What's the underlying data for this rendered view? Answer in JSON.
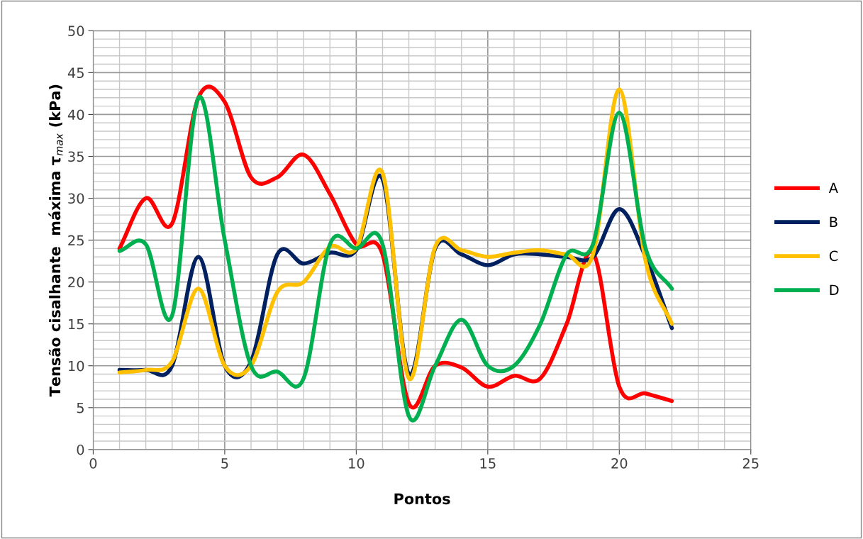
{
  "chart_data": {
    "type": "line",
    "xlabel": "Pontos",
    "ylabel": "Tensão cisalhante  máxima τ$_{max}$ (kPa)",
    "x": [
      1,
      2,
      3,
      4,
      5,
      6,
      7,
      8,
      9,
      10,
      11,
      12,
      13,
      14,
      15,
      16,
      17,
      18,
      19,
      20,
      21,
      22
    ],
    "series": [
      {
        "name": "A",
        "color": "#ff0000",
        "values": [
          24,
          30,
          27,
          42,
          41.5,
          32.5,
          32.5,
          35.2,
          30.5,
          24.5,
          23.3,
          5.5,
          10,
          9.8,
          7.5,
          8.8,
          8.5,
          15,
          23.5,
          7.5,
          6.7,
          5.8
        ]
      },
      {
        "name": "B",
        "color": "#002060",
        "values": [
          9.5,
          9.5,
          10,
          23,
          10,
          10.5,
          23.3,
          22.2,
          23.5,
          23.8,
          32.3,
          9,
          24,
          23.3,
          22,
          23.3,
          23.3,
          23,
          23,
          28.7,
          23,
          14.5
        ]
      },
      {
        "name": "C",
        "color": "#ffc000",
        "values": [
          9.2,
          9.5,
          10.5,
          19.2,
          10,
          10,
          18.8,
          20,
          24.2,
          24,
          33,
          8.5,
          24.2,
          23.8,
          23,
          23.5,
          23.8,
          23.3,
          23.3,
          43,
          22.5,
          15
        ]
      },
      {
        "name": "D",
        "color": "#00b050",
        "values": [
          23.7,
          24.5,
          16,
          42,
          25,
          10,
          9.3,
          8.5,
          24.5,
          24,
          24.5,
          4,
          10,
          15.5,
          10,
          10,
          15,
          23.3,
          24.5,
          40.2,
          24,
          19.2
        ]
      }
    ],
    "xlim": [
      0,
      25
    ],
    "xticks": [
      0,
      5,
      10,
      15,
      20,
      25
    ],
    "ylim": [
      0,
      50
    ],
    "yticks": [
      0,
      5,
      10,
      15,
      20,
      25,
      30,
      35,
      40,
      45,
      50
    ],
    "grid": true,
    "legend": "right",
    "marker": "none",
    "line_style": "solid"
  }
}
